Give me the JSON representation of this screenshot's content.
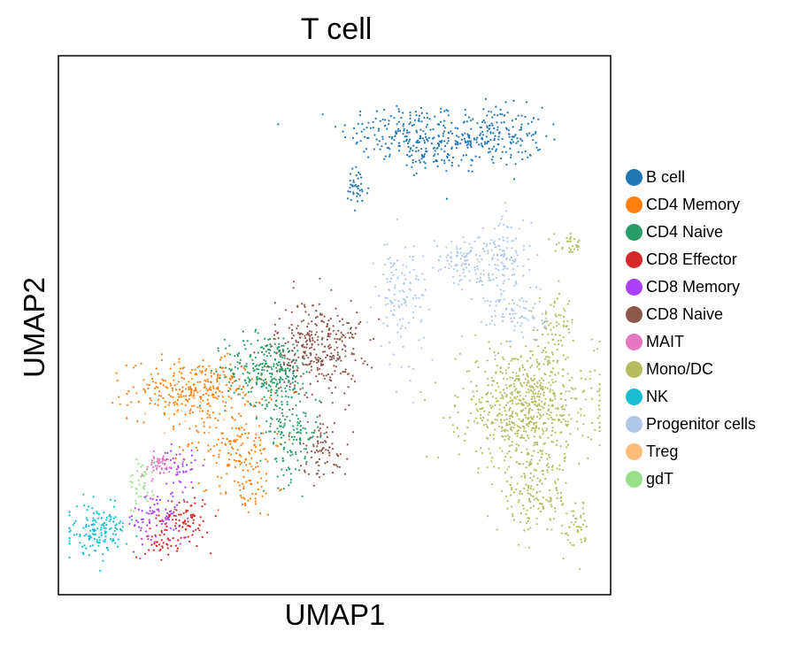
{
  "chart_data": {
    "type": "scatter",
    "title": "T cell",
    "xlabel": "UMAP1",
    "ylabel": "UMAP2",
    "ticks": "none",
    "grid": false,
    "legend_position": "right",
    "series": [
      {
        "name": "B cell",
        "color": "#1f77b4",
        "clusters": [
          [
            0.62,
            0.86,
            0.1,
            0.05,
            160
          ],
          [
            0.78,
            0.85,
            0.09,
            0.05,
            230
          ],
          [
            0.68,
            0.82,
            0.07,
            0.03,
            80
          ],
          [
            0.54,
            0.75,
            0.02,
            0.04,
            40
          ]
        ]
      },
      {
        "name": "CD4 Memory",
        "color": "#ff7f0e",
        "clusters": [
          [
            0.25,
            0.38,
            0.11,
            0.05,
            300
          ],
          [
            0.32,
            0.28,
            0.08,
            0.05,
            120
          ],
          [
            0.34,
            0.2,
            0.05,
            0.05,
            60
          ]
        ]
      },
      {
        "name": "CD4 Naive",
        "color": "#279e68",
        "clusters": [
          [
            0.38,
            0.42,
            0.07,
            0.06,
            280
          ],
          [
            0.42,
            0.3,
            0.05,
            0.08,
            150
          ]
        ]
      },
      {
        "name": "CD8 Effector",
        "color": "#d62728",
        "clusters": [
          [
            0.23,
            0.14,
            0.04,
            0.04,
            80
          ],
          [
            0.19,
            0.1,
            0.03,
            0.03,
            40
          ]
        ]
      },
      {
        "name": "CD8 Memory",
        "color": "#aa40fc",
        "clusters": [
          [
            0.18,
            0.14,
            0.05,
            0.05,
            90
          ],
          [
            0.22,
            0.24,
            0.03,
            0.03,
            40
          ]
        ]
      },
      {
        "name": "CD8 Naive",
        "color": "#8c564b",
        "clusters": [
          [
            0.47,
            0.46,
            0.07,
            0.08,
            320
          ],
          [
            0.48,
            0.27,
            0.04,
            0.05,
            80
          ]
        ]
      },
      {
        "name": "MAIT",
        "color": "#e377c2",
        "clusters": [
          [
            0.18,
            0.24,
            0.03,
            0.02,
            50
          ]
        ]
      },
      {
        "name": "Mono/DC",
        "color": "#b5bd61",
        "clusters": [
          [
            0.85,
            0.35,
            0.11,
            0.1,
            700
          ],
          [
            0.86,
            0.18,
            0.06,
            0.06,
            150
          ],
          [
            0.9,
            0.5,
            0.03,
            0.05,
            60
          ],
          [
            0.94,
            0.12,
            0.02,
            0.05,
            40
          ],
          [
            0.93,
            0.65,
            0.03,
            0.015,
            30
          ]
        ]
      },
      {
        "name": "NK",
        "color": "#17becf",
        "clusters": [
          [
            0.07,
            0.12,
            0.05,
            0.04,
            150
          ]
        ]
      },
      {
        "name": "Progenitor cells",
        "color": "#aec7e8",
        "clusters": [
          [
            0.62,
            0.55,
            0.04,
            0.1,
            120
          ],
          [
            0.73,
            0.62,
            0.05,
            0.04,
            100
          ],
          [
            0.81,
            0.62,
            0.04,
            0.08,
            120
          ],
          [
            0.83,
            0.52,
            0.05,
            0.05,
            80
          ]
        ]
      },
      {
        "name": "Treg",
        "color": "#ffbb78",
        "clusters": [
          [
            0.24,
            0.35,
            0.06,
            0.05,
            25
          ]
        ]
      },
      {
        "name": "gdT",
        "color": "#98df8a",
        "clusters": [
          [
            0.15,
            0.2,
            0.02,
            0.05,
            40
          ]
        ]
      }
    ]
  }
}
